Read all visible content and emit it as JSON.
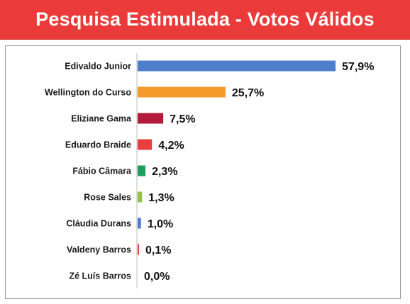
{
  "header": {
    "title": "Pesquisa Estimulada - Votos Válidos"
  },
  "chart_data": {
    "type": "bar",
    "orientation": "horizontal",
    "title": "Pesquisa Estimulada - Votos Válidos",
    "categories": [
      "Edivaldo Junior",
      "Wellington do Curso",
      "Eliziane Gama",
      "Eduardo Braide",
      "Fábio Câmara",
      "Rose Sales",
      "Cláudia Durans",
      "Valdeny Barros",
      "Zé Luís Barros"
    ],
    "values": [
      57.9,
      25.7,
      7.5,
      4.2,
      2.3,
      1.3,
      1.0,
      0.1,
      0.0
    ],
    "value_labels": [
      "57,9%",
      "25,7%",
      "7,5%",
      "4,2%",
      "2,3%",
      "1,3%",
      "1,0%",
      "0,1%",
      "0,0%"
    ],
    "colors": [
      "#4f7fcb",
      "#f69a2b",
      "#b21b3b",
      "#ea3d3d",
      "#1e9e5c",
      "#94c24a",
      "#4f7fcb",
      "#ea3d3d",
      "#bbbbbb"
    ],
    "xlim": [
      0,
      60
    ],
    "grid": false,
    "legend": "none"
  }
}
